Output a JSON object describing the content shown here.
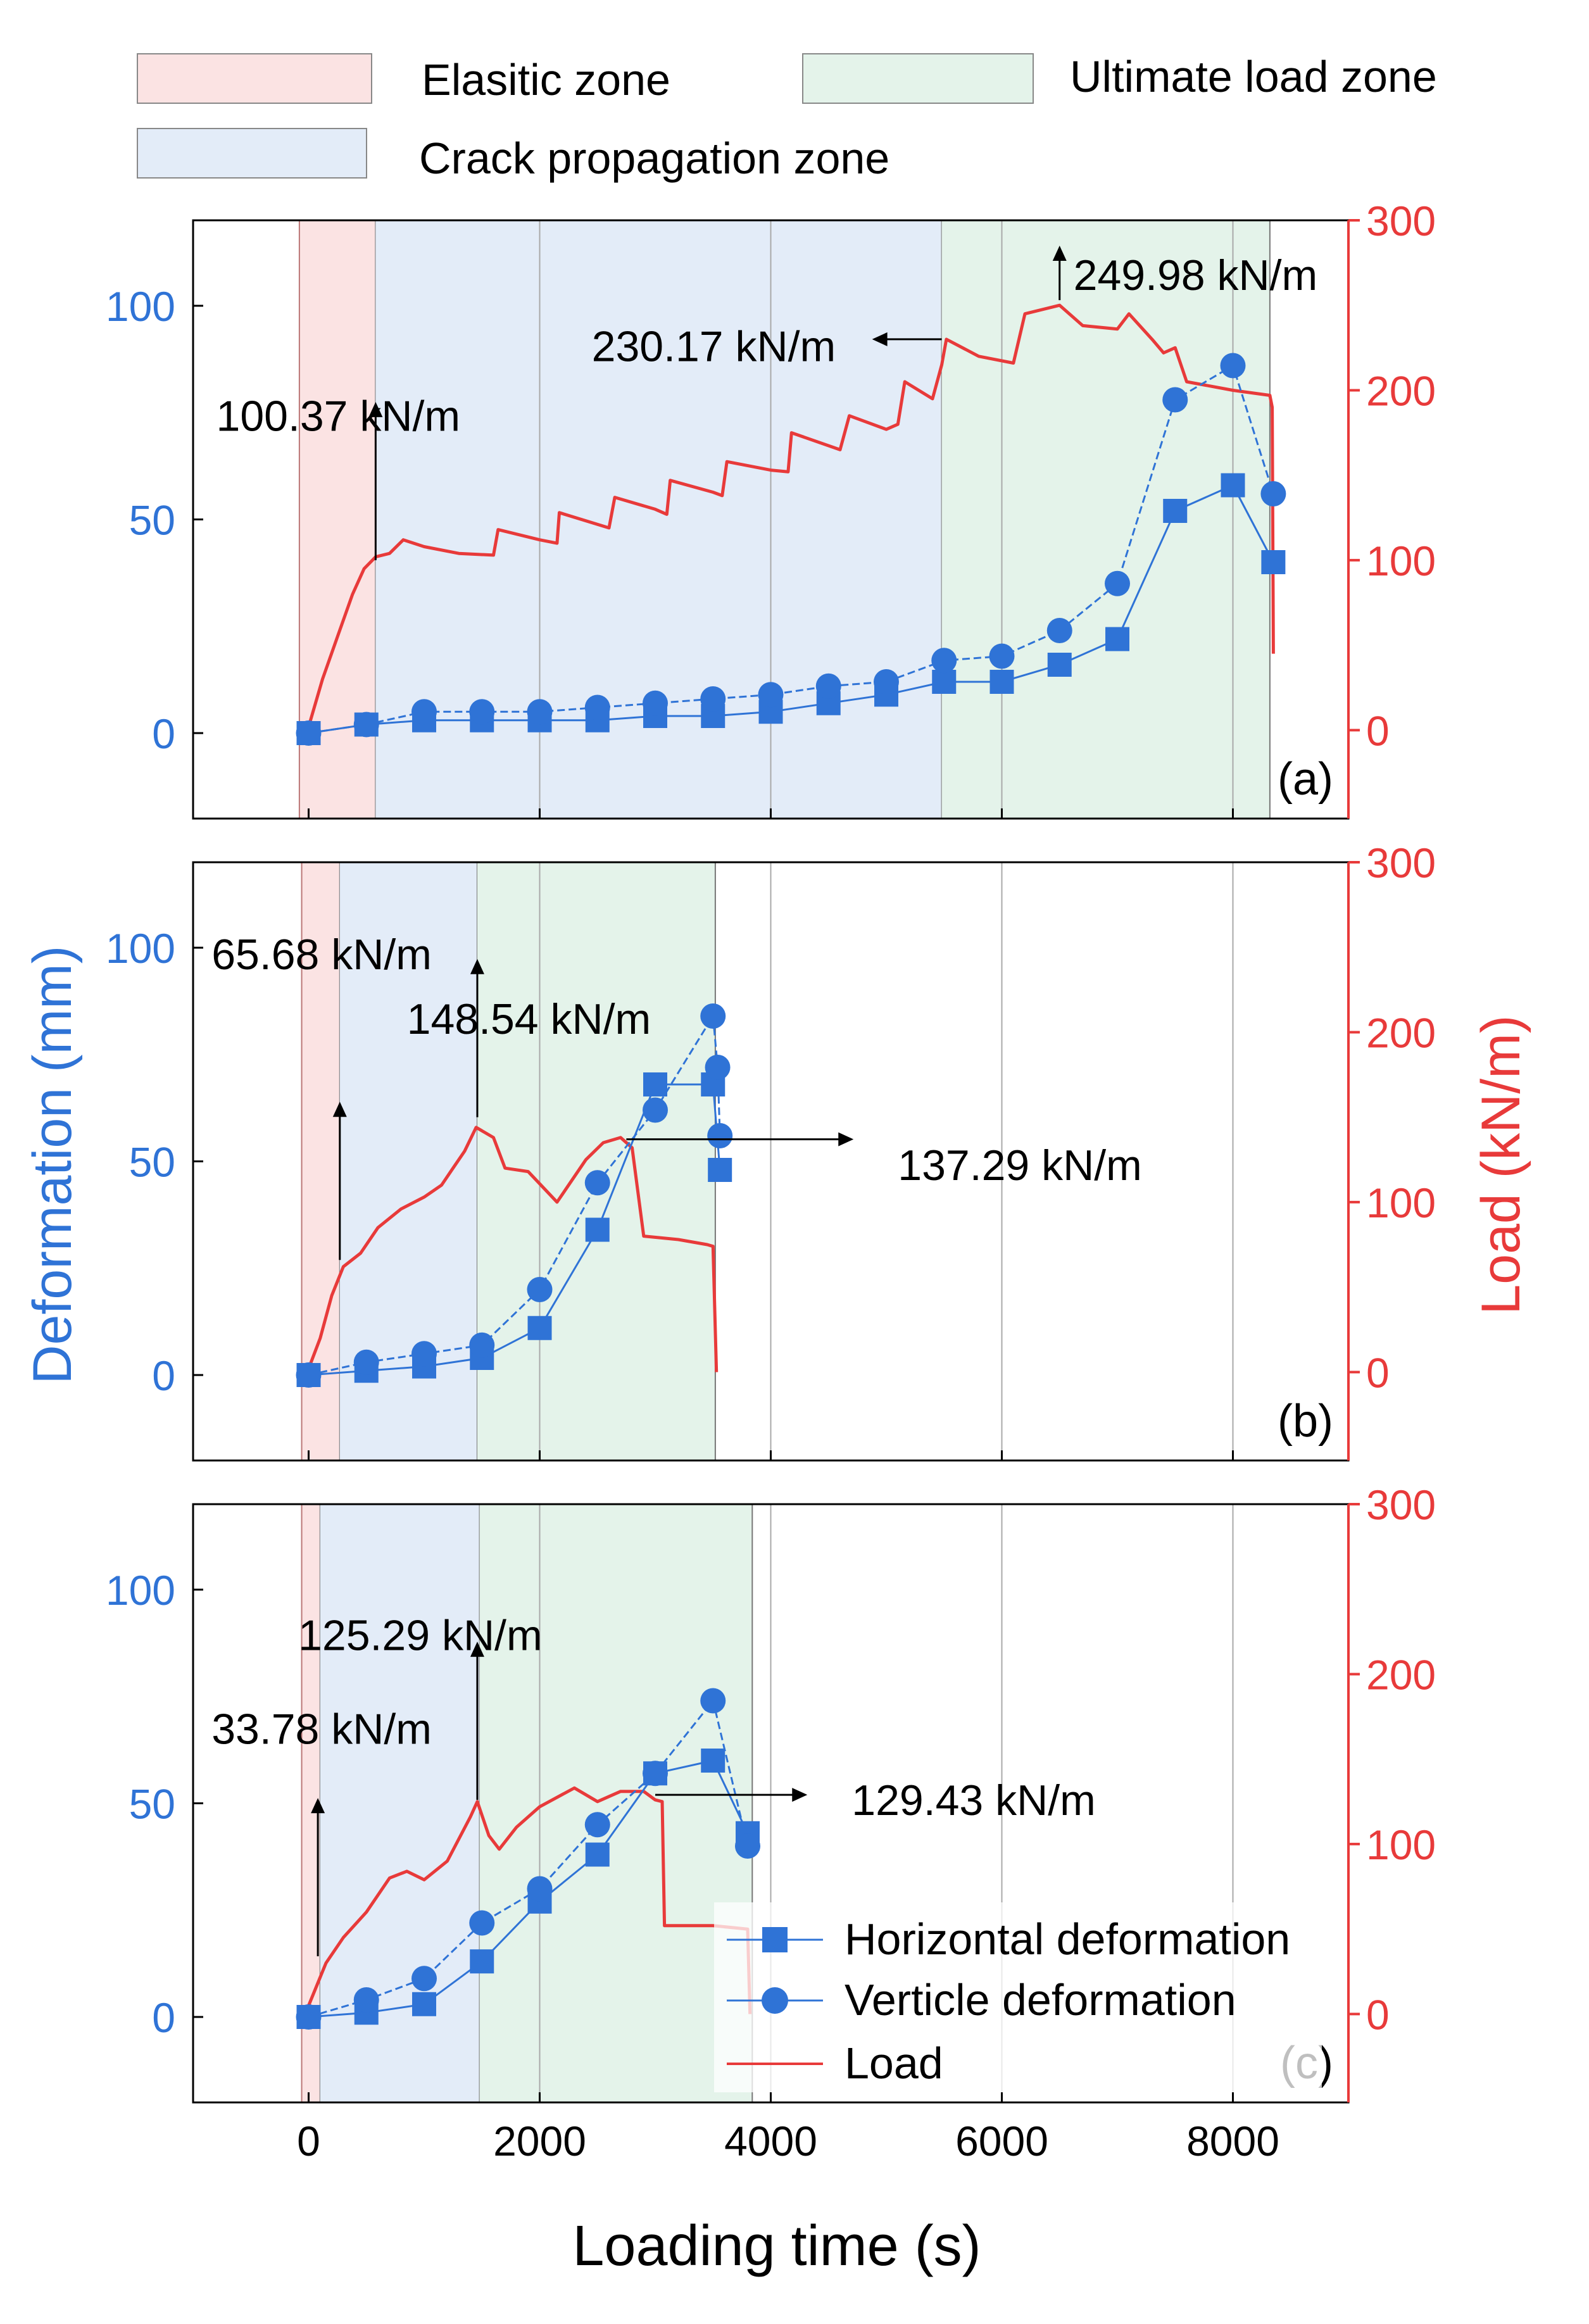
{
  "legend_top": {
    "zones": [
      {
        "label": "Elasitic zone",
        "color": "#fbe3e3"
      },
      {
        "label": "Ultimate load zone",
        "color": "#e4f3ea"
      },
      {
        "label": "Crack propagation zone",
        "color": "#e3ecf8"
      }
    ]
  },
  "colors": {
    "deformation": "#2f73d6",
    "load": "#e83a3a",
    "axis": "#000000",
    "grid": "#a9a9a9",
    "elastic": "#fbe3e3",
    "crack": "#e3ecf8",
    "ultimate": "#e4f3ea"
  },
  "chart_data": {
    "type": "line",
    "title": "",
    "xlabel": "Loading time (s)",
    "ylabel_left": "Deformation  (mm)",
    "ylabel_right": "Load (kN/m)",
    "xlim": [
      -1000,
      9000
    ],
    "ylim_left": [
      -20,
      120
    ],
    "ylim_right": [
      -52,
      300
    ],
    "x_ticks": [
      0,
      2000,
      4000,
      6000,
      8000
    ],
    "x_tick_labels": [
      "0",
      "2000",
      "4000",
      "6000",
      "8000"
    ],
    "y_left_ticks": [
      0,
      50,
      100
    ],
    "y_left_tick_labels": [
      "0",
      "50",
      "100"
    ],
    "y_right_ticks": [
      0,
      100,
      200,
      300
    ],
    "y_right_tick_labels": [
      "0",
      "100",
      "200",
      "300"
    ],
    "series_legend": [
      {
        "label": "Horizontal deformation",
        "marker": "square"
      },
      {
        "label": "Verticle deformation",
        "marker": "circle"
      },
      {
        "label": "Load",
        "marker": "line"
      }
    ],
    "panels": [
      {
        "id": "a",
        "label": "(a)",
        "zones": {
          "elastic": [
            -80,
            580
          ],
          "crack": [
            580,
            5480
          ],
          "ultimate": [
            5480,
            8320
          ]
        },
        "horizontal": [
          [
            0,
            0
          ],
          [
            500,
            2
          ],
          [
            1000,
            3
          ],
          [
            1500,
            3
          ],
          [
            2000,
            3
          ],
          [
            2500,
            3
          ],
          [
            3000,
            4
          ],
          [
            3500,
            4
          ],
          [
            4000,
            5
          ],
          [
            4500,
            7
          ],
          [
            5000,
            9
          ],
          [
            5500,
            12
          ],
          [
            6000,
            12
          ],
          [
            6500,
            16
          ],
          [
            7000,
            22
          ],
          [
            7500,
            52
          ],
          [
            8000,
            58
          ],
          [
            8350,
            40
          ]
        ],
        "vertical": [
          [
            0,
            0
          ],
          [
            500,
            2
          ],
          [
            1000,
            5
          ],
          [
            1500,
            5
          ],
          [
            2000,
            5
          ],
          [
            2500,
            6
          ],
          [
            3000,
            7
          ],
          [
            3500,
            8
          ],
          [
            4000,
            9
          ],
          [
            4500,
            11
          ],
          [
            5000,
            12
          ],
          [
            5500,
            17
          ],
          [
            6000,
            18
          ],
          [
            6500,
            24
          ],
          [
            7000,
            35
          ],
          [
            7500,
            78
          ],
          [
            8000,
            86
          ],
          [
            8350,
            56
          ]
        ],
        "load": [
          [
            0,
            2
          ],
          [
            120,
            30
          ],
          [
            250,
            55
          ],
          [
            380,
            80
          ],
          [
            480,
            95
          ],
          [
            580,
            102
          ],
          [
            700,
            104
          ],
          [
            820,
            112
          ],
          [
            1000,
            108
          ],
          [
            1300,
            104
          ],
          [
            1600,
            103
          ],
          [
            1640,
            118
          ],
          [
            2000,
            112
          ],
          [
            2150,
            110
          ],
          [
            2170,
            128
          ],
          [
            2600,
            119
          ],
          [
            2650,
            137
          ],
          [
            3000,
            130
          ],
          [
            3100,
            127
          ],
          [
            3130,
            147
          ],
          [
            3500,
            140
          ],
          [
            3580,
            138
          ],
          [
            3620,
            158
          ],
          [
            4000,
            153
          ],
          [
            4150,
            152
          ],
          [
            4180,
            175
          ],
          [
            4600,
            165
          ],
          [
            4680,
            185
          ],
          [
            5000,
            177
          ],
          [
            5100,
            180
          ],
          [
            5160,
            205
          ],
          [
            5400,
            195
          ],
          [
            5480,
            215
          ],
          [
            5520,
            230
          ],
          [
            5800,
            220
          ],
          [
            6100,
            216
          ],
          [
            6200,
            245
          ],
          [
            6500,
            250
          ],
          [
            6700,
            238
          ],
          [
            7000,
            236
          ],
          [
            7100,
            245
          ],
          [
            7300,
            230
          ],
          [
            7400,
            222
          ],
          [
            7500,
            225
          ],
          [
            7600,
            205
          ],
          [
            8000,
            200
          ],
          [
            8320,
            197
          ],
          [
            8340,
            190
          ],
          [
            8350,
            45
          ]
        ],
        "annotations": [
          {
            "text": "100.37 kN/m",
            "x": 580,
            "load": 100,
            "dir": "up",
            "lx": -800,
            "ly": 185
          },
          {
            "text": "230.17 kN/m",
            "x": 5480,
            "load": 230,
            "dir": "left",
            "lx": 2450,
            "ly": 226
          },
          {
            "text": "249.98 kN/m",
            "x": 6500,
            "load": 253,
            "dir": "up",
            "lx": 6620,
            "ly": 268
          }
        ]
      },
      {
        "id": "b",
        "label": "(b)",
        "zones": {
          "elastic": [
            -60,
            270
          ],
          "crack": [
            270,
            1460
          ],
          "ultimate": [
            1460,
            3520
          ]
        },
        "horizontal": [
          [
            0,
            0
          ],
          [
            500,
            1
          ],
          [
            1000,
            2
          ],
          [
            1500,
            4
          ],
          [
            2000,
            11
          ],
          [
            2500,
            34
          ],
          [
            3000,
            68
          ],
          [
            3500,
            68
          ],
          [
            3560,
            48
          ]
        ],
        "vertical": [
          [
            0,
            0
          ],
          [
            500,
            3
          ],
          [
            1000,
            5
          ],
          [
            1500,
            7
          ],
          [
            2000,
            20
          ],
          [
            2500,
            45
          ],
          [
            3000,
            62
          ],
          [
            3500,
            84
          ],
          [
            3540,
            72
          ],
          [
            3560,
            56
          ]
        ],
        "load": [
          [
            0,
            2
          ],
          [
            100,
            20
          ],
          [
            200,
            45
          ],
          [
            300,
            62
          ],
          [
            450,
            70
          ],
          [
            600,
            85
          ],
          [
            800,
            96
          ],
          [
            1000,
            103
          ],
          [
            1150,
            110
          ],
          [
            1250,
            120
          ],
          [
            1350,
            130
          ],
          [
            1450,
            144
          ],
          [
            1600,
            138
          ],
          [
            1700,
            120
          ],
          [
            1900,
            118
          ],
          [
            2150,
            100
          ],
          [
            2400,
            125
          ],
          [
            2550,
            135
          ],
          [
            2700,
            138
          ],
          [
            2800,
            132
          ],
          [
            2900,
            80
          ],
          [
            3200,
            78
          ],
          [
            3450,
            75
          ],
          [
            3500,
            74
          ],
          [
            3530,
            0
          ]
        ],
        "annotations": [
          {
            "text": "65.68 kN/m",
            "x": 270,
            "load": 66,
            "dir": "up",
            "lx": -840,
            "ly": 246
          },
          {
            "text": "148.54 kN/m",
            "x": 1460,
            "load": 150,
            "dir": "up",
            "lx": 850,
            "ly": 208
          },
          {
            "text": "137.29 kN/m",
            "x": 2750,
            "load": 137,
            "dir": "right",
            "lx": 5100,
            "ly": 122
          }
        ]
      },
      {
        "id": "c",
        "label": "(c)",
        "zones": {
          "elastic": [
            -60,
            100
          ],
          "crack": [
            100,
            1480
          ],
          "ultimate": [
            1480,
            3840
          ]
        },
        "horizontal": [
          [
            0,
            0
          ],
          [
            500,
            1
          ],
          [
            1000,
            3
          ],
          [
            1500,
            13
          ],
          [
            2000,
            27
          ],
          [
            2500,
            38
          ],
          [
            3000,
            57
          ],
          [
            3500,
            60
          ],
          [
            3800,
            43
          ]
        ],
        "vertical": [
          [
            0,
            0
          ],
          [
            500,
            4
          ],
          [
            1000,
            9
          ],
          [
            1500,
            22
          ],
          [
            2000,
            30
          ],
          [
            2500,
            45
          ],
          [
            3000,
            57
          ],
          [
            3500,
            74
          ],
          [
            3800,
            40
          ]
        ],
        "load": [
          [
            0,
            5
          ],
          [
            150,
            30
          ],
          [
            300,
            45
          ],
          [
            500,
            60
          ],
          [
            700,
            80
          ],
          [
            850,
            84
          ],
          [
            1000,
            79
          ],
          [
            1200,
            90
          ],
          [
            1400,
            116
          ],
          [
            1460,
            125
          ],
          [
            1560,
            105
          ],
          [
            1650,
            97
          ],
          [
            1800,
            110
          ],
          [
            2000,
            122
          ],
          [
            2300,
            133
          ],
          [
            2500,
            125
          ],
          [
            2700,
            131
          ],
          [
            2900,
            131
          ],
          [
            3000,
            126
          ],
          [
            3060,
            125
          ],
          [
            3080,
            52
          ],
          [
            3500,
            52
          ],
          [
            3800,
            50
          ],
          [
            3820,
            0
          ]
        ],
        "annotations": [
          {
            "text": "33.78 kN/m",
            "x": 80,
            "load": 34,
            "dir": "up",
            "lx": -840,
            "ly": 168
          },
          {
            "text": "125.29 kN/m",
            "x": 1460,
            "load": 126,
            "dir": "up",
            "lx": -90,
            "ly": 223
          },
          {
            "text": "129.43 kN/m",
            "x": 3000,
            "load": 129,
            "dir": "right",
            "lx": 4700,
            "ly": 126
          }
        ]
      }
    ]
  }
}
